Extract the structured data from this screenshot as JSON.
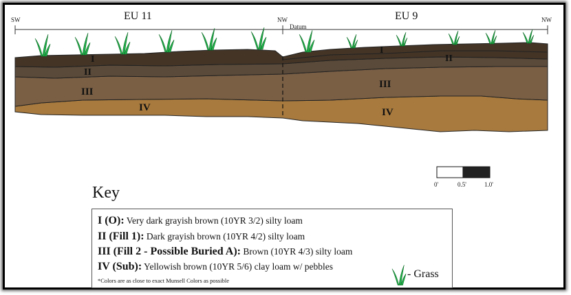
{
  "units": {
    "left": "EU 11",
    "right": "EU 9"
  },
  "directions": {
    "left_sw": "SW",
    "mid_nw": "NW",
    "right_nw": "NW"
  },
  "datum": "Datum",
  "layer_labels": {
    "I": "I",
    "II": "II",
    "III": "III",
    "IV": "IV"
  },
  "scale": {
    "ticks": [
      "0'",
      "0.5'",
      "1.0'"
    ]
  },
  "key": {
    "title": "Key",
    "rows": [
      {
        "code": "I (O):",
        "desc": " Very dark grayish brown (10YR 3/2) silty loam"
      },
      {
        "code": "II (Fill 1):",
        "desc": " Dark grayish brown (10YR 4/2) silty loam"
      },
      {
        "code": "III (Fill 2 - Possible Buried A):",
        "desc": " Brown (10YR 4/3) silty loam"
      },
      {
        "code": "IV (Sub):",
        "desc": " Yellowish brown (10YR 5/6) clay loam w/ pebbles"
      }
    ],
    "note": "*Colors are as close to exact Munsell Colors as possible",
    "grass_label": "- Grass"
  },
  "colors": {
    "layer_I": "#433426",
    "layer_II": "#5a4a39",
    "layer_III": "#7a5f45",
    "layer_IV": "#a87a3e",
    "grass": "#22b14c",
    "scale_dark": "#222222"
  }
}
